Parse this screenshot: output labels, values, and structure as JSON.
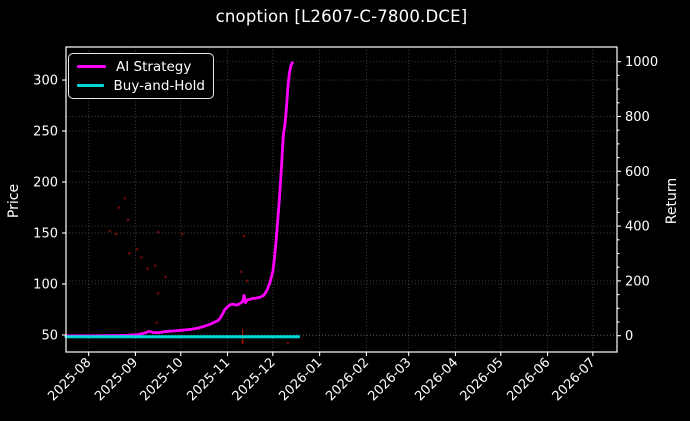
{
  "chart_data": {
    "type": "line",
    "title": "cnoption [L2607-C-7800.DCE]",
    "ylabel_left": "Price",
    "ylabel_right": "Return",
    "background_color": "#000000",
    "text_color": "#ffffff",
    "grid": true,
    "grid_color": "#9a9a9a",
    "legend_position": "upper left",
    "x_tick_rotation": 45,
    "x_ticks": [
      "2025-08",
      "2025-09",
      "2025-10",
      "2025-11",
      "2025-12",
      "2026-01",
      "2026-02",
      "2026-03",
      "2026-04",
      "2026-05",
      "2026-06",
      "2026-07"
    ],
    "x_range": [
      "2025-07-17",
      "2026-07-17"
    ],
    "y_left_ticks": [
      50,
      100,
      150,
      200,
      250,
      300
    ],
    "y_left_range": [
      33.3,
      332.4
    ],
    "y_right_ticks": [
      0,
      200,
      400,
      600,
      800,
      1000
    ],
    "y_right_minor_step": 50,
    "y_right_range": [
      -59.5,
      1053.6
    ],
    "series": [
      {
        "name": "AI Strategy",
        "color": "#ff00ff",
        "width": 2.8,
        "axis": "left",
        "points": [
          [
            "2025-07-17",
            49.2
          ],
          [
            "2025-08-01",
            49.2
          ],
          [
            "2025-08-10",
            49.3
          ],
          [
            "2025-08-20",
            49.5
          ],
          [
            "2025-08-28",
            49.8
          ],
          [
            "2025-09-03",
            50.5
          ],
          [
            "2025-09-08",
            52.3
          ],
          [
            "2025-09-10",
            53.6
          ],
          [
            "2025-09-13",
            52.4
          ],
          [
            "2025-09-16",
            52.2
          ],
          [
            "2025-09-20",
            53.2
          ],
          [
            "2025-09-25",
            53.8
          ],
          [
            "2025-10-01",
            54.6
          ],
          [
            "2025-10-08",
            55.6
          ],
          [
            "2025-10-12",
            56.6
          ],
          [
            "2025-10-16",
            58.2
          ],
          [
            "2025-10-20",
            60.2
          ],
          [
            "2025-10-23",
            62.2
          ],
          [
            "2025-10-26",
            64.5
          ],
          [
            "2025-10-28",
            68.5
          ],
          [
            "2025-10-30",
            74.5
          ],
          [
            "2025-11-01",
            77.5
          ],
          [
            "2025-11-03",
            79.8
          ],
          [
            "2025-11-05",
            80.2
          ],
          [
            "2025-11-07",
            79.2
          ],
          [
            "2025-11-09",
            80.8
          ],
          [
            "2025-11-11",
            82.5
          ],
          [
            "2025-11-12",
            88.8
          ],
          [
            "2025-11-13",
            81.6
          ],
          [
            "2025-11-14",
            84.2
          ],
          [
            "2025-11-17",
            85.6
          ],
          [
            "2025-11-20",
            86.2
          ],
          [
            "2025-11-23",
            87.2
          ],
          [
            "2025-11-25",
            88.8
          ],
          [
            "2025-11-27",
            93.5
          ],
          [
            "2025-11-29",
            101
          ],
          [
            "2025-12-01",
            112
          ],
          [
            "2025-12-02",
            124
          ],
          [
            "2025-12-03",
            139
          ],
          [
            "2025-12-04",
            157
          ],
          [
            "2025-12-05",
            177
          ],
          [
            "2025-12-06",
            198
          ],
          [
            "2025-12-07",
            222
          ],
          [
            "2025-12-08",
            247
          ],
          [
            "2025-12-09",
            256
          ],
          [
            "2025-12-10",
            272
          ],
          [
            "2025-12-11",
            293
          ],
          [
            "2025-12-12",
            307
          ],
          [
            "2025-12-13",
            314
          ],
          [
            "2025-12-14",
            317
          ]
        ]
      },
      {
        "name": "Buy-and-Hold",
        "color": "#00d8d8",
        "width": 3,
        "axis": "left",
        "points": [
          [
            "2025-07-17",
            48.3
          ],
          [
            "2025-12-18",
            48.3
          ]
        ]
      }
    ],
    "signal_dots": {
      "name": "trade-signal-dots",
      "color": "#a01010",
      "opacity": 0.6,
      "radius": 1.4,
      "points": [
        [
          "2025-08-21",
          175
        ],
        [
          "2025-08-25",
          184
        ],
        [
          "2025-08-27",
          163
        ],
        [
          "2025-08-15",
          152
        ],
        [
          "2025-08-19",
          149
        ],
        [
          "2025-08-28",
          130
        ],
        [
          "2025-09-02",
          134
        ],
        [
          "2025-09-05",
          126
        ],
        [
          "2025-09-09",
          115
        ],
        [
          "2025-09-14",
          118
        ],
        [
          "2025-09-16",
          151
        ],
        [
          "2025-09-21",
          107
        ],
        [
          "2025-09-16",
          91
        ],
        [
          "2025-10-02",
          149
        ],
        [
          "2025-09-15",
          62
        ],
        [
          "2025-11-12",
          147
        ],
        [
          "2025-11-10",
          112
        ],
        [
          "2025-11-14",
          103
        ],
        [
          "2025-12-11",
          42
        ],
        [
          "2025-11-11",
          43
        ]
      ]
    },
    "signal_tick": {
      "date": "2025-11-11",
      "price_from": 41,
      "price_to": 56,
      "color": "#bb1111",
      "opacity": 0.8
    }
  }
}
